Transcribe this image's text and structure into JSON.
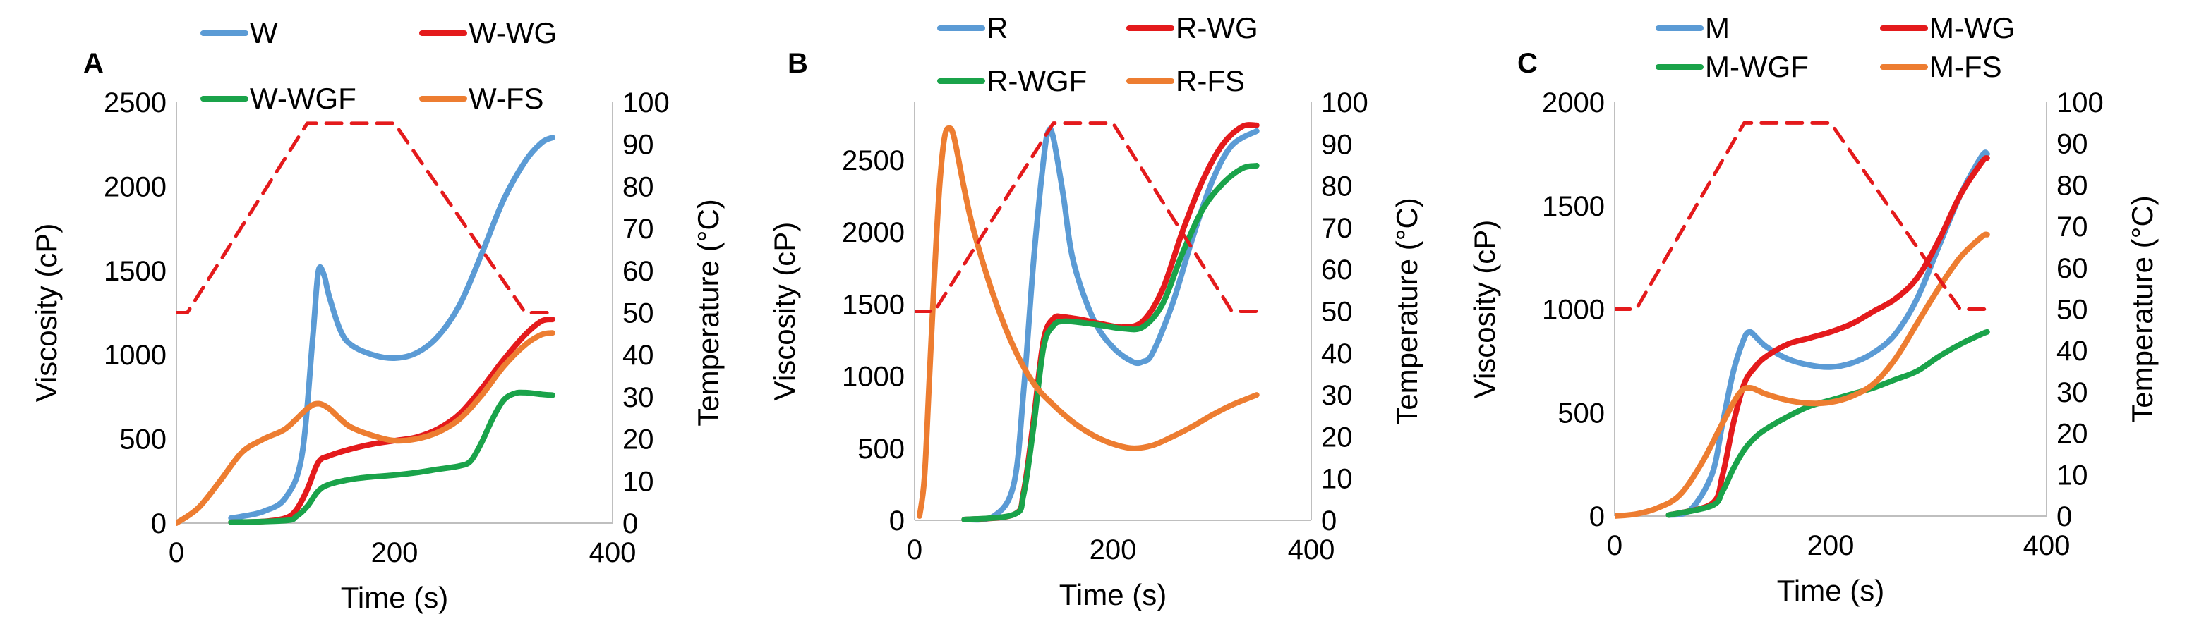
{
  "chart_data": [
    {
      "type": "line",
      "panel_label": "A",
      "xlabel": "Time (s)",
      "ylabel": "Viscosity (cP)",
      "y2label": "Temperature (°C)",
      "xlim": [
        0,
        400
      ],
      "ylim": [
        0,
        2500
      ],
      "y2lim": [
        0,
        100
      ],
      "xticks": [
        0,
        200,
        400
      ],
      "yticks": [
        0,
        500,
        1000,
        1500,
        2000,
        2500
      ],
      "y2ticks": [
        0,
        10,
        20,
        30,
        40,
        50,
        60,
        70,
        80,
        90,
        100
      ],
      "grid": false,
      "legend_position": "top",
      "series": [
        {
          "name": "W",
          "color": "#5b9bd5",
          "axis": "left",
          "x": [
            50,
            60,
            80,
            100,
            115,
            125,
            130,
            135,
            140,
            150,
            160,
            180,
            200,
            220,
            240,
            260,
            280,
            300,
            320,
            335,
            345
          ],
          "y": [
            30,
            40,
            70,
            150,
            400,
            1100,
            1490,
            1480,
            1350,
            1150,
            1060,
            1000,
            980,
            1010,
            1110,
            1300,
            1600,
            1920,
            2150,
            2260,
            2290
          ]
        },
        {
          "name": "W-WG",
          "color": "#e41a1c",
          "axis": "left",
          "x": [
            50,
            80,
            100,
            110,
            120,
            130,
            140,
            160,
            180,
            200,
            220,
            240,
            260,
            280,
            300,
            320,
            335,
            345
          ],
          "y": [
            5,
            10,
            30,
            80,
            200,
            360,
            400,
            440,
            470,
            490,
            510,
            560,
            650,
            800,
            970,
            1120,
            1200,
            1210
          ]
        },
        {
          "name": "W-WGF",
          "color": "#1aa34a",
          "axis": "left",
          "x": [
            50,
            100,
            110,
            120,
            130,
            140,
            160,
            180,
            200,
            220,
            240,
            260,
            270,
            280,
            290,
            300,
            310,
            320,
            335,
            345
          ],
          "y": [
            5,
            15,
            40,
            100,
            190,
            230,
            260,
            275,
            285,
            300,
            320,
            340,
            370,
            480,
            620,
            730,
            770,
            775,
            765,
            760
          ]
        },
        {
          "name": "W-FS",
          "color": "#ed7d31",
          "axis": "left",
          "x": [
            0,
            20,
            40,
            60,
            80,
            100,
            120,
            130,
            140,
            150,
            160,
            180,
            200,
            220,
            240,
            260,
            280,
            300,
            320,
            335,
            345
          ],
          "y": [
            0,
            90,
            250,
            420,
            500,
            560,
            680,
            710,
            680,
            620,
            570,
            520,
            490,
            500,
            540,
            620,
            760,
            930,
            1060,
            1120,
            1130
          ]
        },
        {
          "name": "",
          "color": "#e41a1c",
          "dash": true,
          "axis": "right",
          "x": [
            0,
            10,
            120,
            200,
            320,
            345
          ],
          "y": [
            50,
            50,
            95,
            95,
            50,
            50
          ]
        }
      ]
    },
    {
      "type": "line",
      "panel_label": "B",
      "xlabel": "Time (s)",
      "ylabel": "Viscosity (cP)",
      "y2label": "Temperature (°C)",
      "xlim": [
        0,
        400
      ],
      "ylim": [
        0,
        2900
      ],
      "y2lim": [
        0,
        100
      ],
      "xticks": [
        0,
        200,
        400
      ],
      "yticks": [
        0,
        500,
        1000,
        1500,
        2000,
        2500
      ],
      "y2ticks": [
        0,
        10,
        20,
        30,
        40,
        50,
        60,
        70,
        80,
        90,
        100
      ],
      "grid": false,
      "legend_position": "top",
      "series": [
        {
          "name": "R",
          "color": "#5b9bd5",
          "axis": "left",
          "x": [
            50,
            80,
            100,
            110,
            120,
            130,
            135,
            140,
            150,
            160,
            180,
            200,
            220,
            230,
            240,
            260,
            280,
            300,
            320,
            345
          ],
          "y": [
            5,
            30,
            250,
            900,
            1800,
            2500,
            2700,
            2650,
            2250,
            1800,
            1400,
            1200,
            1100,
            1100,
            1160,
            1500,
            1950,
            2350,
            2600,
            2700
          ]
        },
        {
          "name": "R-WG",
          "color": "#e41a1c",
          "axis": "left",
          "x": [
            50,
            100,
            110,
            120,
            130,
            140,
            150,
            170,
            190,
            210,
            230,
            250,
            270,
            290,
            310,
            330,
            345
          ],
          "y": [
            5,
            40,
            200,
            700,
            1250,
            1400,
            1410,
            1390,
            1360,
            1340,
            1380,
            1600,
            2000,
            2350,
            2600,
            2730,
            2740
          ]
        },
        {
          "name": "R-WGF",
          "color": "#1aa34a",
          "axis": "left",
          "x": [
            50,
            100,
            110,
            120,
            130,
            140,
            150,
            170,
            190,
            210,
            230,
            250,
            270,
            290,
            310,
            330,
            345
          ],
          "y": [
            5,
            40,
            180,
            650,
            1200,
            1350,
            1380,
            1370,
            1350,
            1330,
            1340,
            1500,
            1850,
            2150,
            2330,
            2440,
            2460
          ]
        },
        {
          "name": "R-FS",
          "color": "#ed7d31",
          "axis": "left",
          "x": [
            5,
            10,
            15,
            20,
            25,
            30,
            35,
            40,
            50,
            60,
            80,
            100,
            120,
            140,
            160,
            180,
            200,
            220,
            240,
            260,
            280,
            300,
            320,
            345
          ],
          "y": [
            30,
            300,
            1000,
            1700,
            2300,
            2650,
            2720,
            2650,
            2300,
            2000,
            1550,
            1200,
            950,
            800,
            680,
            590,
            530,
            500,
            520,
            580,
            650,
            730,
            800,
            870
          ]
        },
        {
          "name": "",
          "color": "#e41a1c",
          "dash": true,
          "axis": "right",
          "x": [
            0,
            20,
            140,
            200,
            320,
            345
          ],
          "y": [
            50,
            50,
            95,
            95,
            50,
            50
          ]
        }
      ]
    },
    {
      "type": "line",
      "panel_label": "C",
      "xlabel": "Time (s)",
      "ylabel": "Viscosity (cP)",
      "y2label": "Temperature (°C)",
      "xlim": [
        0,
        400
      ],
      "ylim": [
        0,
        2000
      ],
      "y2lim": [
        0,
        100
      ],
      "xticks": [
        0,
        200,
        400
      ],
      "yticks": [
        0,
        500,
        1000,
        1500,
        2000
      ],
      "y2ticks": [
        0,
        10,
        20,
        30,
        40,
        50,
        60,
        70,
        80,
        90,
        100
      ],
      "grid": false,
      "legend_position": "top",
      "series": [
        {
          "name": "M",
          "color": "#5b9bd5",
          "axis": "left",
          "x": [
            50,
            70,
            90,
            100,
            110,
            120,
            125,
            130,
            140,
            160,
            180,
            200,
            220,
            240,
            260,
            280,
            300,
            320,
            340,
            345
          ],
          "y": [
            5,
            30,
            200,
            450,
            700,
            860,
            890,
            870,
            820,
            760,
            730,
            720,
            740,
            790,
            880,
            1050,
            1300,
            1550,
            1740,
            1750
          ]
        },
        {
          "name": "M-WG",
          "color": "#e41a1c",
          "axis": "left",
          "x": [
            50,
            90,
            100,
            110,
            120,
            130,
            140,
            160,
            180,
            200,
            220,
            240,
            260,
            280,
            300,
            320,
            340,
            345
          ],
          "y": [
            5,
            60,
            200,
            450,
            640,
            720,
            770,
            830,
            860,
            890,
            930,
            990,
            1050,
            1150,
            1330,
            1550,
            1710,
            1730
          ]
        },
        {
          "name": "M-WGF",
          "color": "#1aa34a",
          "axis": "left",
          "x": [
            50,
            90,
            100,
            110,
            120,
            130,
            140,
            160,
            180,
            200,
            220,
            240,
            260,
            280,
            300,
            320,
            340,
            345
          ],
          "y": [
            5,
            50,
            120,
            230,
            320,
            380,
            420,
            480,
            530,
            560,
            590,
            620,
            660,
            700,
            770,
            830,
            880,
            890
          ]
        },
        {
          "name": "M-FS",
          "color": "#ed7d31",
          "axis": "left",
          "x": [
            0,
            20,
            40,
            60,
            80,
            100,
            115,
            125,
            140,
            160,
            180,
            200,
            220,
            240,
            260,
            280,
            300,
            320,
            340,
            345
          ],
          "y": [
            0,
            10,
            40,
            100,
            250,
            450,
            590,
            620,
            590,
            560,
            545,
            550,
            580,
            640,
            760,
            930,
            1100,
            1250,
            1350,
            1360
          ]
        },
        {
          "name": "",
          "color": "#e41a1c",
          "dash": true,
          "axis": "right",
          "x": [
            0,
            20,
            120,
            200,
            320,
            345
          ],
          "y": [
            50,
            50,
            95,
            95,
            50,
            50
          ]
        }
      ]
    }
  ]
}
